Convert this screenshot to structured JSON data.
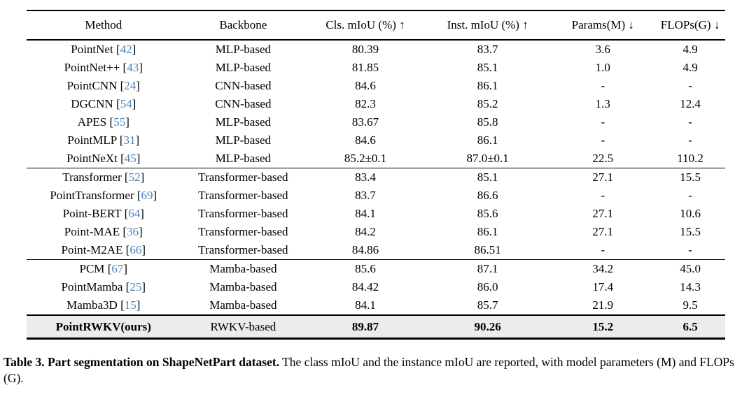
{
  "table": {
    "citation_color": "#4f81bd",
    "highlight_bg": "#ececec",
    "citation_brackets": [
      "[",
      "]"
    ],
    "headers": [
      "Method",
      "Backbone",
      "Cls. mIoU (%) ↑",
      "Inst. mIoU (%) ↑",
      "Params(M) ↓",
      "FLOPs(G) ↓"
    ],
    "groups": [
      {
        "rows": [
          {
            "method": "PointNet",
            "ref": "42",
            "backbone": "MLP-based",
            "cls_miou": "80.39",
            "inst_miou": "83.7",
            "params": "3.6",
            "flops": "4.9"
          },
          {
            "method": "PointNet++",
            "ref": "43",
            "backbone": "MLP-based",
            "cls_miou": "81.85",
            "inst_miou": "85.1",
            "params": "1.0",
            "flops": "4.9"
          },
          {
            "method": "PointCNN",
            "ref": "24",
            "backbone": "CNN-based",
            "cls_miou": "84.6",
            "inst_miou": "86.1",
            "params": "-",
            "flops": "-"
          },
          {
            "method": "DGCNN",
            "ref": "54",
            "backbone": "CNN-based",
            "cls_miou": "82.3",
            "inst_miou": "85.2",
            "params": "1.3",
            "flops": "12.4"
          },
          {
            "method": "APES",
            "ref": "55",
            "backbone": "MLP-based",
            "cls_miou": "83.67",
            "inst_miou": "85.8",
            "params": "-",
            "flops": "-"
          },
          {
            "method": "PointMLP",
            "ref": "31",
            "backbone": "MLP-based",
            "cls_miou": "84.6",
            "inst_miou": "86.1",
            "params": "-",
            "flops": "-"
          },
          {
            "method": "PointNeXt",
            "ref": "45",
            "backbone": "MLP-based",
            "cls_miou": "85.2±0.1",
            "inst_miou": "87.0±0.1",
            "params": "22.5",
            "flops": "110.2"
          }
        ]
      },
      {
        "rows": [
          {
            "method": "Transformer",
            "ref": "52",
            "backbone": "Transformer-based",
            "cls_miou": "83.4",
            "inst_miou": "85.1",
            "params": "27.1",
            "flops": "15.5"
          },
          {
            "method": "PointTransformer",
            "ref": "69",
            "backbone": "Transformer-based",
            "cls_miou": "83.7",
            "inst_miou": "86.6",
            "params": "-",
            "flops": "-"
          },
          {
            "method": "Point-BERT",
            "ref": "64",
            "backbone": "Transformer-based",
            "cls_miou": "84.1",
            "inst_miou": "85.6",
            "params": "27.1",
            "flops": "10.6"
          },
          {
            "method": "Point-MAE",
            "ref": "36",
            "backbone": "Transformer-based",
            "cls_miou": "84.2",
            "inst_miou": "86.1",
            "params": "27.1",
            "flops": "15.5"
          },
          {
            "method": "Point-M2AE",
            "ref": "66",
            "backbone": "Transformer-based",
            "cls_miou": "84.86",
            "inst_miou": "86.51",
            "params": "-",
            "flops": "-"
          }
        ]
      },
      {
        "rows": [
          {
            "method": "PCM",
            "ref": "67",
            "backbone": "Mamba-based",
            "cls_miou": "85.6",
            "inst_miou": "87.1",
            "params": "34.2",
            "flops": "45.0"
          },
          {
            "method": "PointMamba",
            "ref": "25",
            "backbone": "Mamba-based",
            "cls_miou": "84.42",
            "inst_miou": "86.0",
            "params": "17.4",
            "flops": "14.3"
          },
          {
            "method": "Mamba3D",
            "ref": "15",
            "backbone": "Mamba-based",
            "cls_miou": "84.1",
            "inst_miou": "85.7",
            "params": "21.9",
            "flops": "9.5"
          }
        ]
      }
    ],
    "highlight_row": {
      "method": "PointRWKV(ours)",
      "ref": null,
      "backbone": "RWKV-based",
      "cls_miou": "89.87",
      "inst_miou": "90.26",
      "params": "15.2",
      "flops": "6.5"
    }
  },
  "caption": {
    "bold": "Table 3. Part segmentation on ShapeNetPart dataset.",
    "text": " The class mIoU and the instance mIoU are reported, with model parameters (M) and FLOPs (G)."
  }
}
